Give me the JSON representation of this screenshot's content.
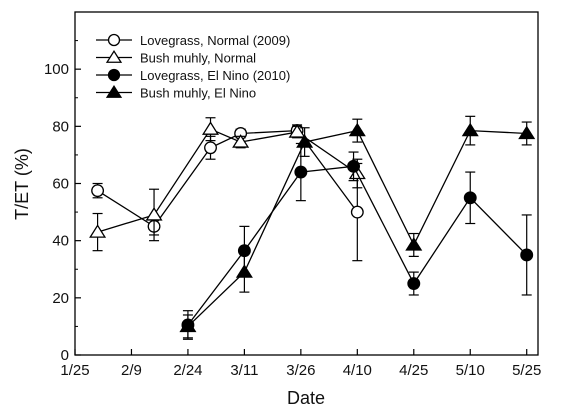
{
  "chart_data": {
    "type": "scatter",
    "xlabel": "Date",
    "ylabel": "T/ET (%)",
    "ylim": [
      0,
      120
    ],
    "yticks": [
      0,
      20,
      40,
      60,
      80,
      100
    ],
    "xlim": [
      0,
      123
    ],
    "x_ticks": [
      {
        "label": "1/25",
        "value": 0
      },
      {
        "label": "2/9",
        "value": 15
      },
      {
        "label": "2/24",
        "value": 30
      },
      {
        "label": "3/11",
        "value": 45
      },
      {
        "label": "3/26",
        "value": 60
      },
      {
        "label": "4/10",
        "value": 75
      },
      {
        "label": "4/25",
        "value": 90
      },
      {
        "label": "5/10",
        "value": 105
      },
      {
        "label": "5/25",
        "value": 120
      }
    ],
    "legend_position": "top-left",
    "series": [
      {
        "name": "Lovegrass, Normal (2009)",
        "marker": "circle-open",
        "x": [
          6,
          21,
          36,
          44,
          59,
          75
        ],
        "y": [
          57.5,
          45,
          72.5,
          77.5,
          78.5,
          50
        ],
        "err": [
          2.5,
          3,
          4,
          1.5,
          2,
          17
        ]
      },
      {
        "name": "Bush muhly, Normal",
        "marker": "triangle-open",
        "x": [
          6,
          21,
          36,
          44,
          59,
          75
        ],
        "y": [
          43,
          49,
          79,
          74.5,
          78,
          63.5
        ],
        "err": [
          6.5,
          9,
          4,
          2,
          2,
          5
        ]
      },
      {
        "name": "Lovegrass, El Nino (2010)",
        "marker": "circle-filled",
        "x": [
          30,
          45,
          60,
          74,
          90,
          105,
          120
        ],
        "y": [
          10.5,
          36.5,
          64,
          66,
          25,
          55,
          35
        ],
        "err": [
          5,
          8.5,
          10,
          5,
          4,
          9,
          14
        ]
      },
      {
        "name": "Bush muhly, El Nino",
        "marker": "triangle-filled",
        "x": [
          30,
          45,
          61,
          75,
          90,
          105,
          120
        ],
        "y": [
          10,
          29,
          74.5,
          78.5,
          38.5,
          78.5,
          77.5
        ],
        "err": [
          4,
          7,
          5,
          4,
          4,
          5,
          4
        ]
      }
    ]
  }
}
